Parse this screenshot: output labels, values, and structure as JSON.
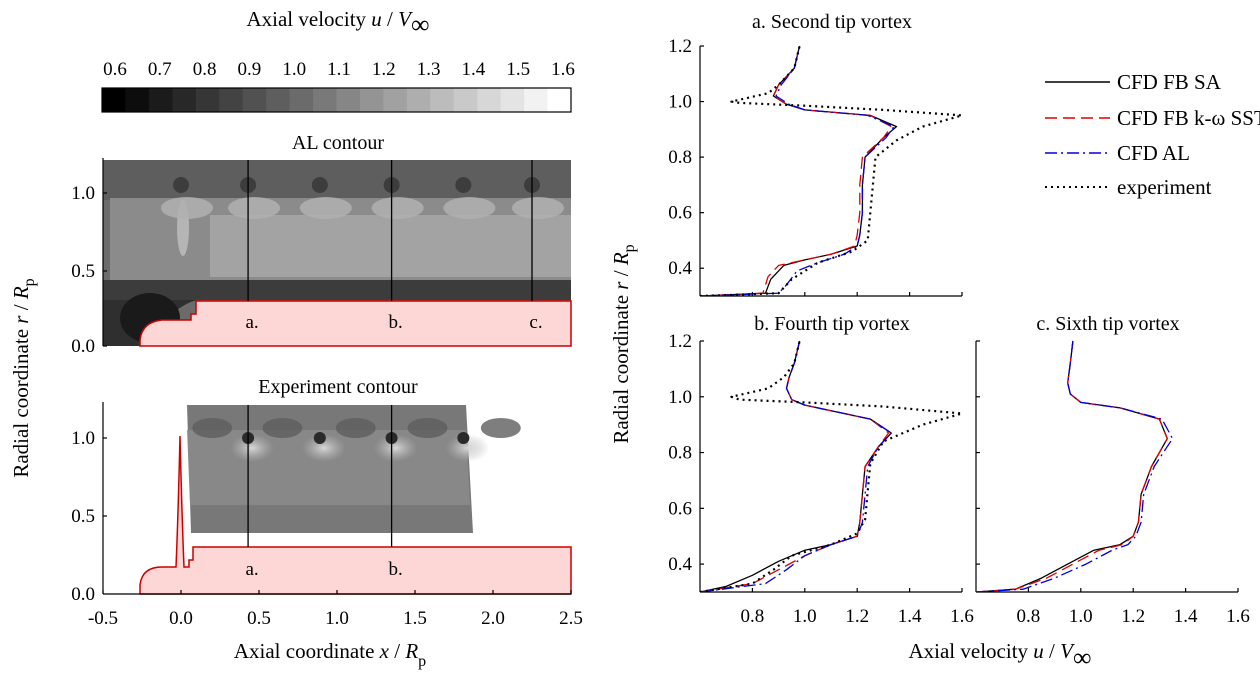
{
  "colorbar": {
    "label_prefix": "Axial velocity ",
    "label_var": "u",
    "label_sep": " / ",
    "label_V": "V",
    "label_inf": "∞",
    "ticks": [
      "0.6",
      "0.7",
      "0.8",
      "0.9",
      "1.0",
      "1.1",
      "1.2",
      "1.3",
      "1.4",
      "1.5",
      "1.6"
    ],
    "range": [
      0.6,
      1.6
    ]
  },
  "contours": {
    "al_title": "AL contour",
    "exp_title": "Experiment contour",
    "ylabel_prefix": "Radial coordinate ",
    "ylabel_var": "r",
    "ylabel_R": "R",
    "ylabel_sub": "p",
    "xlabel_prefix": "Axial coordinate ",
    "xlabel_var": "x",
    "xlabel_R": "R",
    "xlabel_sub": "p",
    "x_ticks": [
      "-0.5",
      "0.0",
      "0.5",
      "1.0",
      "1.5",
      "2.0",
      "2.5"
    ],
    "y_ticks": [
      "0.0",
      "0.5",
      "1.0"
    ],
    "xlim": [
      -0.5,
      2.5
    ],
    "ylim": [
      0,
      1.2
    ],
    "stations_al": [
      {
        "label": "a.",
        "x": 0.43
      },
      {
        "label": "b.",
        "x": 1.35
      },
      {
        "label": "c.",
        "x": 2.25
      }
    ],
    "stations_exp": [
      {
        "label": "a.",
        "x": 0.43
      },
      {
        "label": "b.",
        "x": 1.35
      }
    ],
    "hub_color": "#fdd6d6",
    "hub_edge": "#cc0000"
  },
  "profiles": {
    "titles": [
      "a. Second tip vortex",
      "b. Fourth tip vortex",
      "c. Sixth tip vortex"
    ],
    "ylabel_prefix": "Radial coordinate ",
    "ylabel_var": "r",
    "ylabel_R": "R",
    "ylabel_sub": "p",
    "xlabel_prefix": "Axial velocity ",
    "xlabel_var": "u",
    "xlabel_V": "V",
    "xlabel_inf": "∞",
    "y_ticks": [
      "0.4",
      "0.6",
      "0.8",
      "1.0",
      "1.2"
    ],
    "x_ticks_left": [
      "0.8",
      "1.0",
      "1.2",
      "1.4",
      "1.6"
    ],
    "x_ticks_right": [
      "0.8",
      "1.0",
      "1.2",
      "1.4",
      "1.6"
    ],
    "legend": [
      "CFD FB SA",
      "CFD FB k-ω SST",
      "CFD AL",
      "experiment"
    ]
  },
  "chart_data": [
    {
      "type": "line",
      "title": "a. Second tip vortex",
      "xlabel": "Axial velocity u / V∞",
      "ylabel": "Radial coordinate r / Rp",
      "xlim": [
        0.6,
        1.6
      ],
      "ylim": [
        0.3,
        1.2
      ],
      "series": [
        {
          "name": "CFD FB SA",
          "color": "#000000",
          "x": [
            0.6,
            0.85,
            0.87,
            0.92,
            1.0,
            1.1,
            1.2,
            1.21,
            1.22,
            1.22,
            1.23,
            1.3,
            1.35,
            1.25,
            1.0,
            0.93,
            0.88,
            0.9,
            0.96,
            0.98
          ],
          "y": [
            0.3,
            0.31,
            0.36,
            0.41,
            0.43,
            0.45,
            0.48,
            0.52,
            0.6,
            0.7,
            0.8,
            0.87,
            0.91,
            0.95,
            0.97,
            0.99,
            1.02,
            1.06,
            1.12,
            1.2
          ]
        },
        {
          "name": "CFD FB k-ω SST",
          "color": "#e00000",
          "x": [
            0.6,
            0.84,
            0.86,
            0.9,
            1.0,
            1.1,
            1.19,
            1.2,
            1.21,
            1.21,
            1.22,
            1.3,
            1.33,
            1.25,
            1.0,
            0.93,
            0.88,
            0.9,
            0.96,
            0.98
          ],
          "y": [
            0.3,
            0.31,
            0.37,
            0.41,
            0.43,
            0.45,
            0.48,
            0.52,
            0.6,
            0.7,
            0.8,
            0.87,
            0.91,
            0.95,
            0.97,
            0.99,
            1.02,
            1.06,
            1.12,
            1.2
          ]
        },
        {
          "name": "CFD AL",
          "color": "#0000dd",
          "x": [
            0.6,
            0.9,
            0.93,
            0.97,
            1.05,
            1.15,
            1.2,
            1.21,
            1.22,
            1.22,
            1.23,
            1.31,
            1.34,
            1.24,
            1.0,
            0.94,
            0.89,
            0.91,
            0.96,
            0.98
          ],
          "y": [
            0.3,
            0.31,
            0.34,
            0.39,
            0.42,
            0.45,
            0.48,
            0.52,
            0.6,
            0.7,
            0.8,
            0.87,
            0.91,
            0.95,
            0.97,
            0.99,
            1.02,
            1.06,
            1.12,
            1.2
          ]
        },
        {
          "name": "experiment",
          "color": "#000000",
          "x": [
            0.6,
            0.9,
            0.95,
            1.05,
            1.18,
            1.24,
            1.25,
            1.26,
            1.27,
            1.35,
            1.45,
            1.6,
            1.3,
            1.0,
            0.75,
            0.72,
            0.86,
            0.9,
            0.96,
            0.98
          ],
          "y": [
            0.3,
            0.31,
            0.36,
            0.42,
            0.46,
            0.5,
            0.6,
            0.7,
            0.8,
            0.86,
            0.91,
            0.95,
            0.97,
            0.985,
            0.995,
            1.0,
            1.03,
            1.06,
            1.12,
            1.2
          ]
        }
      ]
    },
    {
      "type": "line",
      "title": "b. Fourth tip vortex",
      "xlabel": "Axial velocity u / V∞",
      "ylabel": "Radial coordinate r / Rp",
      "xlim": [
        0.6,
        1.6
      ],
      "ylim": [
        0.3,
        1.2
      ],
      "series": [
        {
          "name": "CFD FB SA",
          "color": "#000000",
          "x": [
            0.6,
            0.7,
            0.8,
            0.9,
            1.0,
            1.1,
            1.2,
            1.21,
            1.22,
            1.23,
            1.28,
            1.33,
            1.25,
            1.0,
            0.95,
            0.93,
            0.94,
            0.96,
            0.98
          ],
          "y": [
            0.3,
            0.32,
            0.36,
            0.41,
            0.45,
            0.47,
            0.5,
            0.55,
            0.65,
            0.75,
            0.82,
            0.87,
            0.92,
            0.97,
            0.99,
            1.03,
            1.07,
            1.12,
            1.2
          ]
        },
        {
          "name": "CFD FB k-ω SST",
          "color": "#e00000",
          "x": [
            0.6,
            0.8,
            0.9,
            1.0,
            1.1,
            1.2,
            1.21,
            1.22,
            1.23,
            1.28,
            1.32,
            1.25,
            1.0,
            0.95,
            0.93,
            0.94,
            0.96,
            0.98
          ],
          "y": [
            0.3,
            0.33,
            0.38,
            0.43,
            0.47,
            0.5,
            0.55,
            0.65,
            0.75,
            0.82,
            0.87,
            0.92,
            0.97,
            0.99,
            1.03,
            1.07,
            1.12,
            1.2
          ]
        },
        {
          "name": "CFD AL",
          "color": "#0000dd",
          "x": [
            0.6,
            0.85,
            0.93,
            1.0,
            1.1,
            1.2,
            1.22,
            1.23,
            1.24,
            1.28,
            1.33,
            1.25,
            1.0,
            0.95,
            0.93,
            0.94,
            0.96,
            0.98
          ],
          "y": [
            0.3,
            0.33,
            0.38,
            0.43,
            0.47,
            0.5,
            0.55,
            0.65,
            0.75,
            0.82,
            0.87,
            0.92,
            0.97,
            0.99,
            1.03,
            1.07,
            1.12,
            1.2
          ]
        },
        {
          "name": "experiment",
          "color": "#000000",
          "x": [
            0.6,
            0.8,
            0.88,
            0.95,
            1.1,
            1.2,
            1.23,
            1.24,
            1.25,
            1.3,
            1.45,
            1.6,
            1.3,
            1.0,
            0.75,
            0.72,
            0.86,
            0.92,
            0.96,
            0.98
          ],
          "y": [
            0.3,
            0.33,
            0.38,
            0.43,
            0.47,
            0.51,
            0.56,
            0.66,
            0.76,
            0.84,
            0.9,
            0.94,
            0.965,
            0.98,
            0.99,
            1.0,
            1.03,
            1.07,
            1.12,
            1.2
          ]
        }
      ]
    },
    {
      "type": "line",
      "title": "c. Sixth tip vortex",
      "xlabel": "Axial velocity u / V∞",
      "ylabel": "",
      "xlim": [
        0.6,
        1.6
      ],
      "ylim": [
        0.3,
        1.2
      ],
      "series": [
        {
          "name": "CFD FB SA",
          "color": "#000000",
          "x": [
            0.6,
            0.75,
            0.85,
            0.95,
            1.05,
            1.15,
            1.2,
            1.22,
            1.23,
            1.27,
            1.33,
            1.3,
            1.15,
            1.0,
            0.96,
            0.95,
            0.96,
            0.97
          ],
          "y": [
            0.3,
            0.31,
            0.35,
            0.4,
            0.45,
            0.47,
            0.5,
            0.55,
            0.65,
            0.75,
            0.85,
            0.92,
            0.96,
            0.98,
            1.01,
            1.05,
            1.12,
            1.2
          ]
        },
        {
          "name": "CFD FB k-ω SST",
          "color": "#e00000",
          "x": [
            0.6,
            0.75,
            0.87,
            0.97,
            1.07,
            1.16,
            1.2,
            1.22,
            1.23,
            1.27,
            1.33,
            1.3,
            1.15,
            1.0,
            0.96,
            0.95,
            0.96,
            0.97
          ],
          "y": [
            0.3,
            0.31,
            0.35,
            0.4,
            0.45,
            0.47,
            0.5,
            0.55,
            0.65,
            0.75,
            0.85,
            0.92,
            0.96,
            0.98,
            1.01,
            1.05,
            1.12,
            1.2
          ]
        },
        {
          "name": "CFD AL",
          "color": "#0000dd",
          "x": [
            0.6,
            0.78,
            0.9,
            1.02,
            1.12,
            1.18,
            1.21,
            1.23,
            1.24,
            1.28,
            1.35,
            1.31,
            1.15,
            1.0,
            0.96,
            0.95,
            0.96,
            0.97
          ],
          "y": [
            0.3,
            0.31,
            0.35,
            0.4,
            0.45,
            0.47,
            0.5,
            0.55,
            0.65,
            0.75,
            0.85,
            0.92,
            0.96,
            0.98,
            1.01,
            1.05,
            1.12,
            1.2
          ]
        }
      ]
    }
  ]
}
